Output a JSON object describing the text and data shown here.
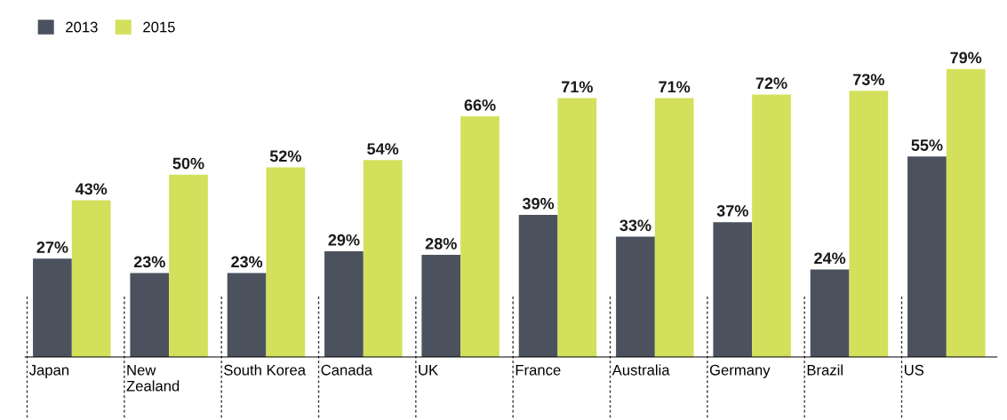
{
  "chart_data": {
    "type": "bar",
    "categories": [
      "Japan",
      "New\nZealand",
      "South Korea",
      "Canada",
      "UK",
      "France",
      "Australia",
      "Germany",
      "Brazil",
      "US"
    ],
    "series": [
      {
        "name": "2013",
        "color": "#4b525e",
        "values": [
          27,
          23,
          23,
          29,
          28,
          39,
          33,
          37,
          24,
          55
        ],
        "value_labels": [
          "27%",
          "23%",
          "23%",
          "29%",
          "28%",
          "39%",
          "33%",
          "37%",
          "24%",
          "55%"
        ]
      },
      {
        "name": "2015",
        "color": "#d3e05b",
        "values": [
          43,
          50,
          52,
          54,
          66,
          71,
          71,
          72,
          73,
          79
        ],
        "value_labels": [
          "43%",
          "50%",
          "52%",
          "54%",
          "66%",
          "71%",
          "71%",
          "72%",
          "73%",
          "79%"
        ]
      }
    ],
    "legend": "top left",
    "grid": false
  }
}
